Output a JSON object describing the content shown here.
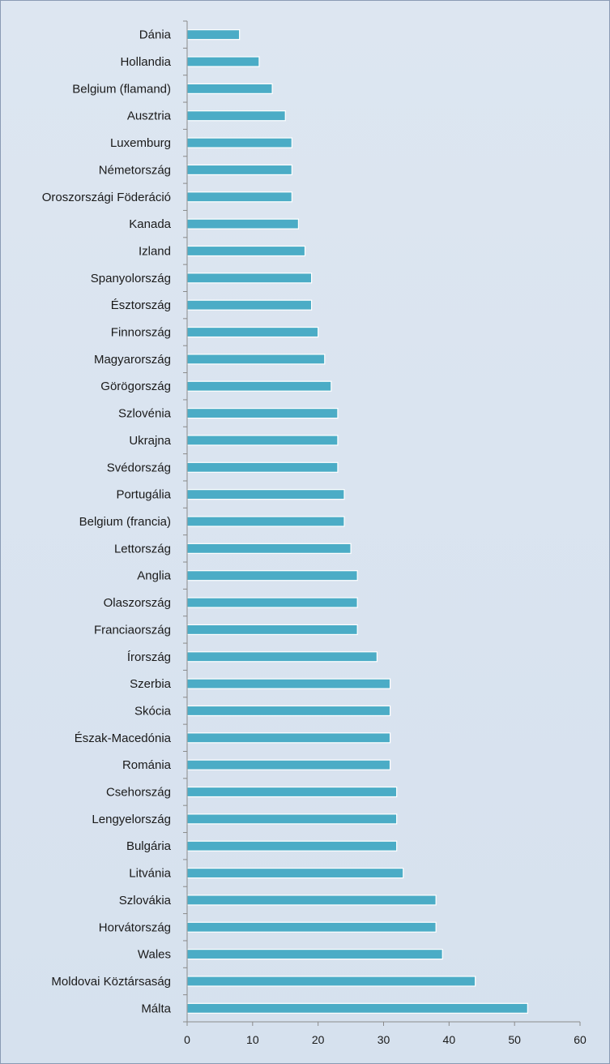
{
  "chart_data": {
    "type": "bar",
    "orientation": "horizontal",
    "categories": [
      "Dánia",
      "Hollandia",
      "Belgium (flamand)",
      "Ausztria",
      "Luxemburg",
      "Németország",
      "Oroszországi Föderáció",
      "Kanada",
      "Izland",
      "Spanyolország",
      "Észtország",
      "Finnország",
      "Magyarország",
      "Görögország",
      "Szlovénia",
      "Ukrajna",
      "Svédország",
      "Portugália",
      "Belgium (francia)",
      "Lettország",
      "Anglia",
      "Olaszország",
      "Franciaország",
      "Írország",
      "Szerbia",
      "Skócia",
      "Észak-Macedónia",
      "Románia",
      "Csehország",
      "Lengyelország",
      "Bulgária",
      "Litvánia",
      "Szlovákia",
      "Horvátország",
      "Wales",
      "Moldovai Köztársaság",
      "Málta"
    ],
    "values": [
      8,
      11,
      13,
      15,
      16,
      16,
      16,
      17,
      18,
      19,
      19,
      20,
      21,
      22,
      23,
      23,
      23,
      24,
      24,
      25,
      26,
      26,
      26,
      29,
      31,
      31,
      31,
      31,
      32,
      32,
      32,
      33,
      38,
      38,
      39,
      44,
      52
    ],
    "xlim": [
      0,
      60
    ],
    "xticks": [
      "0",
      "10",
      "20",
      "30",
      "40",
      "50",
      "60"
    ],
    "xtick_values": [
      0,
      10,
      20,
      30,
      40,
      50,
      60
    ],
    "title": "",
    "xlabel": "",
    "ylabel": "",
    "grid": false,
    "legend": "none",
    "colors": {
      "bar_fill": "#4bacc6",
      "bar_edge": "#ffffff",
      "axis": "#8a8a8a",
      "background": "#dbe4f0"
    }
  }
}
